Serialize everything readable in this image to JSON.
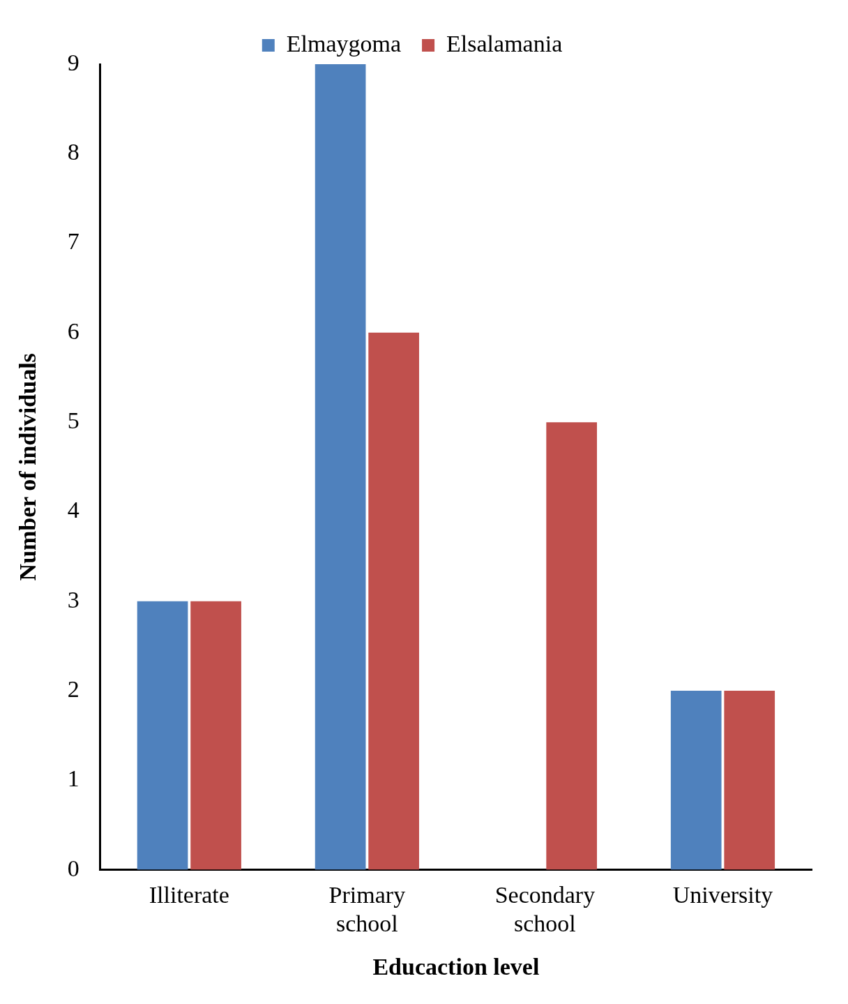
{
  "chart_data": {
    "type": "bar",
    "xlabel": "Educaction level",
    "ylabel": "Number of individuals",
    "categories": [
      "Illiterate",
      "Primary school",
      "Secondary school",
      "University"
    ],
    "series": [
      {
        "name": "Elmaygoma",
        "color": "#4f81bd",
        "values": [
          3,
          9,
          0,
          2
        ]
      },
      {
        "name": "Elsalamania",
        "color": "#c0504d",
        "values": [
          3,
          6,
          5,
          2
        ]
      }
    ],
    "ylim": [
      0,
      9
    ],
    "yticks": [
      0,
      1,
      2,
      3,
      4,
      5,
      6,
      7,
      8,
      9
    ],
    "grid": false,
    "legend": "top"
  }
}
